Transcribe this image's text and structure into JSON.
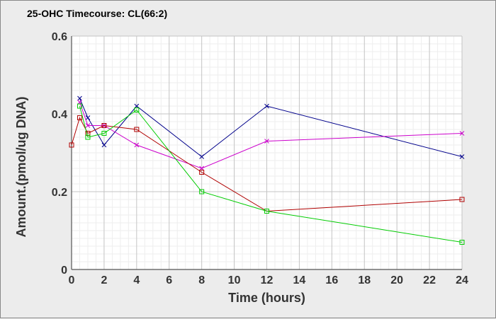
{
  "chart_data": {
    "type": "line",
    "title": "25-OHC Timecourse: CL(66:2)",
    "xlabel": "Time (hours)",
    "ylabel": "Amount.(pmol/ug DNA)",
    "xlim": [
      0,
      24
    ],
    "ylim": [
      0,
      0.6
    ],
    "xticks": [
      0,
      2,
      4,
      6,
      8,
      10,
      12,
      14,
      16,
      18,
      20,
      22,
      24
    ],
    "yticks": [
      0,
      0.2,
      0.4,
      0.6
    ],
    "ytick_labels": [
      "0",
      "0.2",
      "0.4",
      "0.6"
    ],
    "grid": true,
    "series": [
      {
        "color": "#00008b",
        "marker": "x",
        "x": [
          0.5,
          1,
          2,
          4,
          8,
          12,
          24
        ],
        "y": [
          0.44,
          0.39,
          0.32,
          0.42,
          0.29,
          0.42,
          0.29
        ]
      },
      {
        "color": "#cc00cc",
        "marker": "x",
        "x": [
          0.5,
          1,
          2,
          4,
          8,
          12,
          24
        ],
        "y": [
          0.43,
          0.37,
          0.37,
          0.32,
          0.26,
          0.33,
          0.35
        ]
      },
      {
        "color": "#b00000",
        "marker": "square",
        "x": [
          0,
          0.5,
          1,
          2,
          4,
          8,
          12,
          24
        ],
        "y": [
          0.32,
          0.39,
          0.35,
          0.37,
          0.36,
          0.25,
          0.15,
          0.18
        ]
      },
      {
        "color": "#00cc00",
        "marker": "square",
        "x": [
          0.5,
          1,
          2,
          4,
          8,
          12,
          24
        ],
        "y": [
          0.42,
          0.34,
          0.35,
          0.41,
          0.2,
          0.15,
          0.07
        ]
      }
    ]
  }
}
